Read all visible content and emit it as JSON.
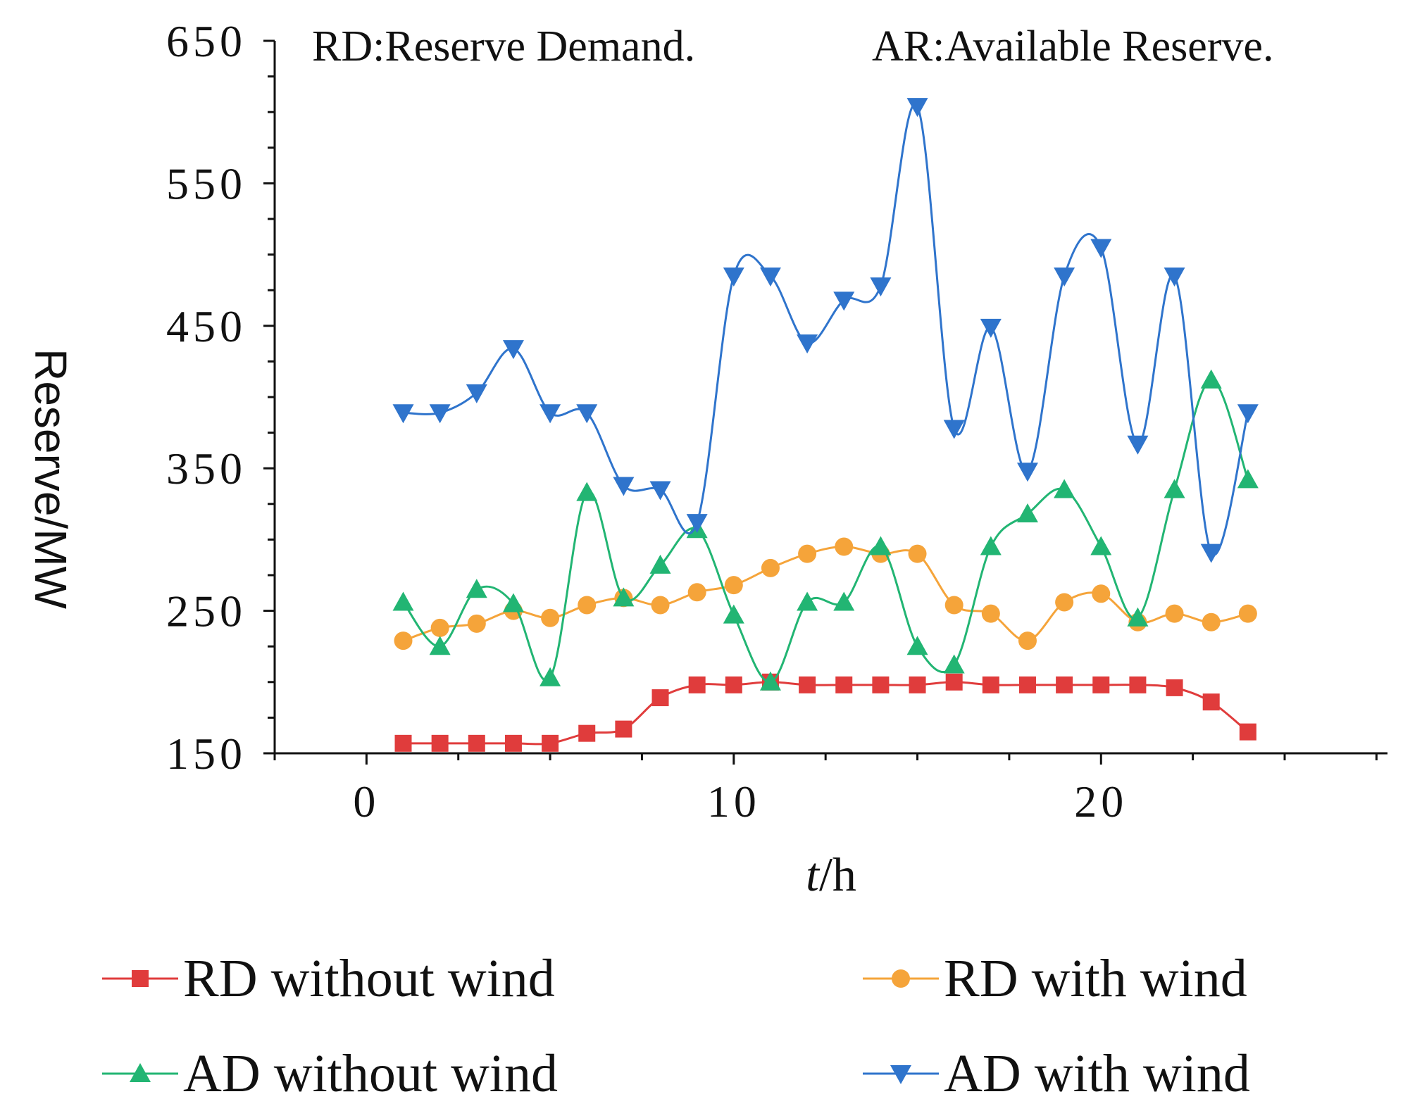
{
  "chart_data": {
    "type": "line",
    "title": "",
    "annotations": [
      "RD:Reserve Demand.",
      "AR:Available Reserve."
    ],
    "xlabel_italic": "t",
    "xlabel_rest": "/h",
    "ylabel": "Reserve/MW",
    "xlim": [
      -2.5,
      27.8
    ],
    "ylim": [
      150,
      650
    ],
    "x_ticks": [
      0,
      10,
      20
    ],
    "x_tick_labels": [
      "0",
      "10",
      "20"
    ],
    "x_minor_step": 2.5,
    "y_ticks": [
      150,
      250,
      350,
      450,
      550,
      650
    ],
    "y_tick_labels": [
      "150",
      "250",
      "350",
      "450",
      "550",
      "650"
    ],
    "y_minor_step": 25,
    "grid": false,
    "x": [
      1,
      2,
      3,
      4,
      5,
      6,
      7,
      8,
      9,
      10,
      11,
      12,
      13,
      14,
      15,
      16,
      17,
      18,
      19,
      20,
      21,
      22,
      23,
      24
    ],
    "series": [
      {
        "name": "RD without wind",
        "color": "#e03c3c",
        "marker": "square",
        "values": [
          157,
          157,
          157,
          157,
          157,
          164,
          167,
          189,
          198,
          198,
          200,
          198,
          198,
          198,
          198,
          200,
          198,
          198,
          198,
          198,
          198,
          196,
          186,
          165
        ]
      },
      {
        "name": "RD with wind",
        "color": "#f5a43a",
        "marker": "circle",
        "values": [
          229,
          238,
          241,
          250,
          245,
          254,
          259,
          254,
          263,
          268,
          280,
          290,
          295,
          290,
          290,
          254,
          248,
          229,
          256,
          262,
          242,
          248,
          242,
          248
        ]
      },
      {
        "name": "AD without wind",
        "color": "#22b573",
        "marker": "triangle-up",
        "values": [
          256,
          225,
          265,
          255,
          203,
          333,
          259,
          282,
          307,
          247,
          200,
          256,
          256,
          295,
          225,
          212,
          295,
          318,
          335,
          295,
          245,
          335,
          412,
          342
        ]
      },
      {
        "name": "AD with wind",
        "color": "#2f74cc",
        "marker": "triangle-down",
        "values": [
          389,
          389,
          403,
          434,
          389,
          389,
          338,
          335,
          312,
          485,
          485,
          438,
          468,
          478,
          604,
          378,
          449,
          348,
          485,
          505,
          367,
          485,
          291,
          389
        ]
      }
    ],
    "legend_position": "bottom"
  }
}
